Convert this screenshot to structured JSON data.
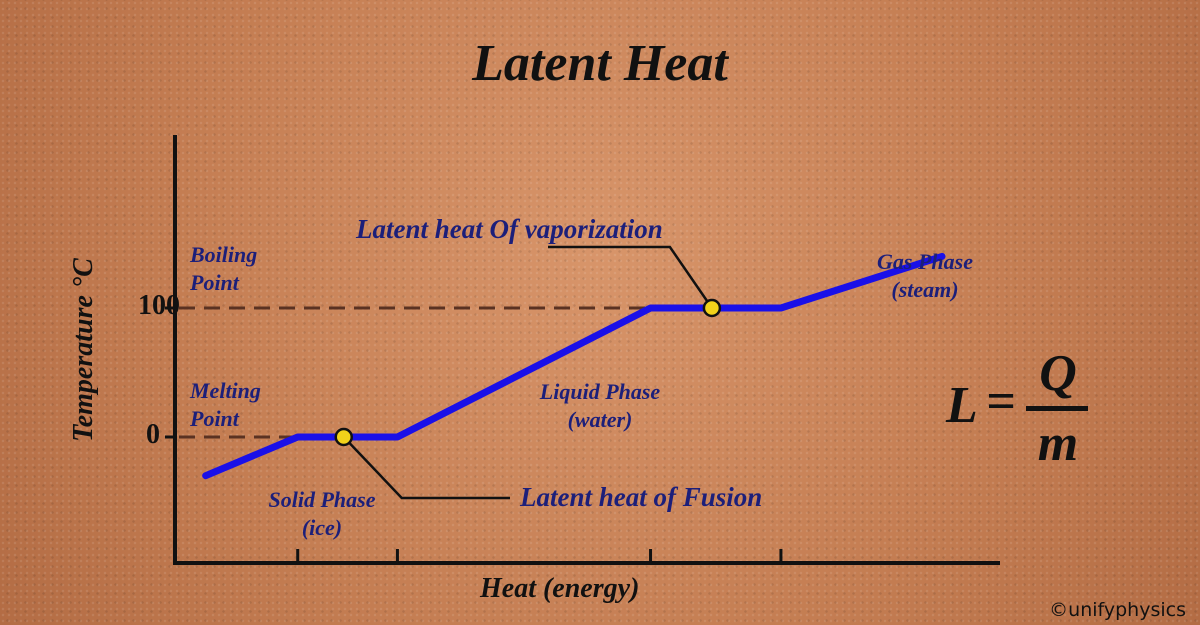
{
  "chart_data": {
    "type": "line",
    "title": "Latent Heat",
    "xlabel": "Heat (energy)",
    "ylabel": "Temperature °C",
    "ylim": [
      -40,
      120
    ],
    "xlim": [
      0,
      10
    ],
    "grid": false,
    "y_ticks": [
      {
        "value": 0,
        "label": "0"
      },
      {
        "value": 100,
        "label": "100"
      }
    ],
    "x_ticks": [
      1.6,
      2.9,
      6.2,
      7.9
    ],
    "series": [
      {
        "name": "",
        "color": "#1a10e8",
        "x": [
          0.4,
          1.6,
          2.9,
          6.2,
          7.9,
          10.0
        ],
        "y": [
          -30,
          0,
          0,
          100,
          100,
          140
        ]
      }
    ],
    "markers": [
      {
        "x": 2.2,
        "y": 0,
        "label": "Latent heat of Fusion"
      },
      {
        "x": 7.0,
        "y": 100,
        "label": "Latent heat Of vaporization"
      }
    ],
    "reference_lines": [
      {
        "y": 0,
        "label": "Melting Point"
      },
      {
        "y": 100,
        "label": "Boiling Point"
      }
    ]
  },
  "labels": {
    "boiling": [
      "Boiling",
      "Point"
    ],
    "melting": [
      "Melting",
      "Point"
    ],
    "solid": [
      "Solid Phase",
      "(ice)"
    ],
    "liquid": [
      "Liquid Phase",
      "(water)"
    ],
    "gas": [
      "Gas Phase",
      "(steam)"
    ],
    "vaporization": "Latent heat Of vaporization",
    "fusion": "Latent heat of Fusion"
  },
  "formula": {
    "lhs": "L",
    "eq": "=",
    "num": "Q",
    "den": "m"
  },
  "credit": "©unifyphysics",
  "colors": {
    "curve": "#1a10e8",
    "dash": "#5a3222",
    "marker": "#f2d21a",
    "text_navy": "#1c1f7a"
  }
}
